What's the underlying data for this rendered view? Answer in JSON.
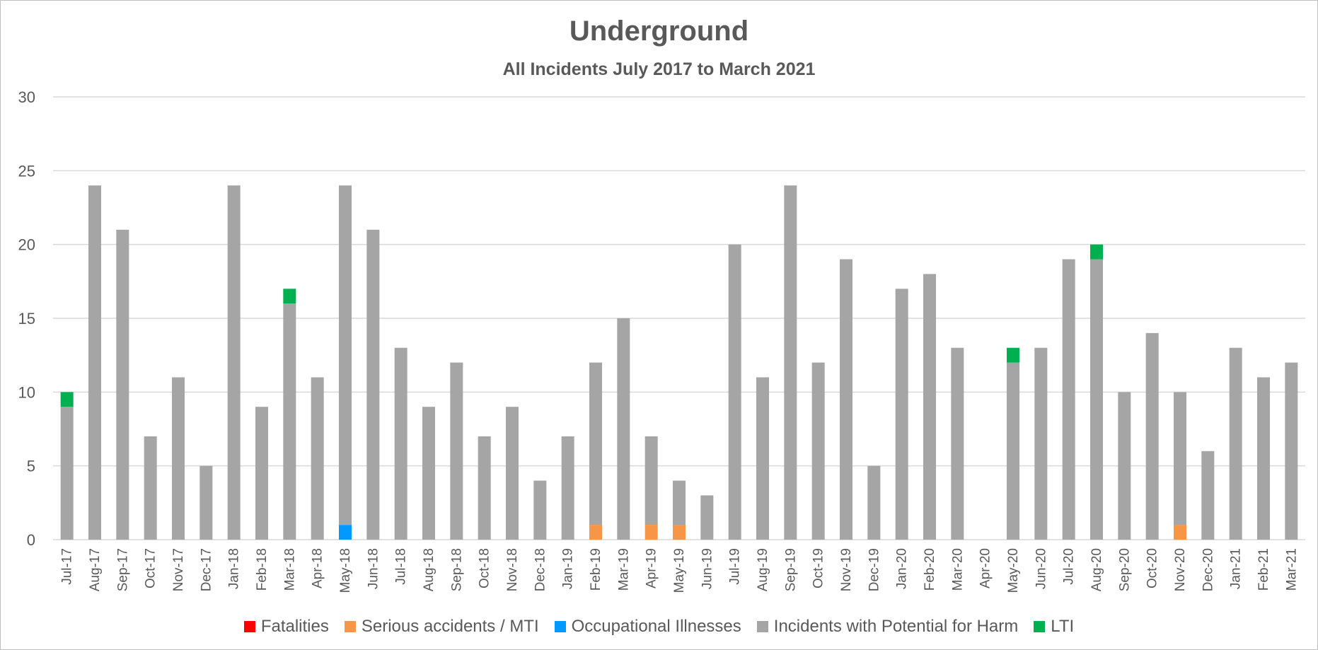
{
  "chart_data": {
    "type": "bar",
    "stacked": true,
    "title": "Underground",
    "subtitle": "All Incidents July 2017 to March 2021",
    "xlabel": "",
    "ylabel": "",
    "ylim": [
      0,
      30
    ],
    "yticks": [
      "0",
      "5",
      "10",
      "15",
      "20",
      "25",
      "30"
    ],
    "grid": true,
    "legend_position": "bottom",
    "categories": [
      "Jul-17",
      "Aug-17",
      "Sep-17",
      "Oct-17",
      "Nov-17",
      "Dec-17",
      "Jan-18",
      "Feb-18",
      "Mar-18",
      "Apr-18",
      "May-18",
      "Jun-18",
      "Jul-18",
      "Aug-18",
      "Sep-18",
      "Oct-18",
      "Nov-18",
      "Dec-18",
      "Jan-19",
      "Feb-19",
      "Mar-19",
      "Apr-19",
      "May-19",
      "Jun-19",
      "Jul-19",
      "Aug-19",
      "Sep-19",
      "Oct-19",
      "Nov-19",
      "Dec-19",
      "Jan-20",
      "Feb-20",
      "Mar-20",
      "Apr-20",
      "May-20",
      "Jun-20",
      "Jul-20",
      "Aug-20",
      "Sep-20",
      "Oct-20",
      "Nov-20",
      "Dec-20",
      "Jan-21",
      "Feb-21",
      "Mar-21"
    ],
    "series": [
      {
        "name": "Fatalities",
        "color": "#ff0000",
        "values": [
          0,
          0,
          0,
          0,
          0,
          0,
          0,
          0,
          0,
          0,
          0,
          0,
          0,
          0,
          0,
          0,
          0,
          0,
          0,
          0,
          0,
          0,
          0,
          0,
          0,
          0,
          0,
          0,
          0,
          0,
          0,
          0,
          0,
          0,
          0,
          0,
          0,
          0,
          0,
          0,
          0,
          0,
          0,
          0,
          0
        ]
      },
      {
        "name": "Serious accidents / MTI",
        "color": "#f79646",
        "values": [
          0,
          0,
          0,
          0,
          0,
          0,
          0,
          0,
          0,
          0,
          0,
          0,
          0,
          0,
          0,
          0,
          0,
          0,
          0,
          1,
          0,
          1,
          1,
          0,
          0,
          0,
          0,
          0,
          0,
          0,
          0,
          0,
          0,
          0,
          0,
          0,
          0,
          0,
          0,
          0,
          1,
          0,
          0,
          0,
          0
        ]
      },
      {
        "name": "Occupational Illnesses",
        "color": "#0099ff",
        "values": [
          0,
          0,
          0,
          0,
          0,
          0,
          0,
          0,
          0,
          0,
          1,
          0,
          0,
          0,
          0,
          0,
          0,
          0,
          0,
          0,
          0,
          0,
          0,
          0,
          0,
          0,
          0,
          0,
          0,
          0,
          0,
          0,
          0,
          0,
          0,
          0,
          0,
          0,
          0,
          0,
          0,
          0,
          0,
          0,
          0
        ]
      },
      {
        "name": "Incidents with Potential for Harm",
        "color": "#a5a5a5",
        "values": [
          9,
          24,
          21,
          7,
          11,
          5,
          24,
          9,
          16,
          11,
          23,
          21,
          13,
          9,
          12,
          7,
          9,
          4,
          7,
          11,
          15,
          6,
          3,
          3,
          20,
          11,
          24,
          12,
          19,
          5,
          17,
          18,
          13,
          0,
          12,
          13,
          19,
          19,
          10,
          14,
          9,
          6,
          13,
          11,
          12
        ]
      },
      {
        "name": "LTI",
        "color": "#00b050",
        "values": [
          1,
          0,
          0,
          0,
          0,
          0,
          0,
          0,
          1,
          0,
          0,
          0,
          0,
          0,
          0,
          0,
          0,
          0,
          0,
          0,
          0,
          0,
          0,
          0,
          0,
          0,
          0,
          0,
          0,
          0,
          0,
          0,
          0,
          0,
          1,
          0,
          0,
          1,
          0,
          0,
          0,
          0,
          0,
          0,
          0
        ]
      }
    ]
  }
}
